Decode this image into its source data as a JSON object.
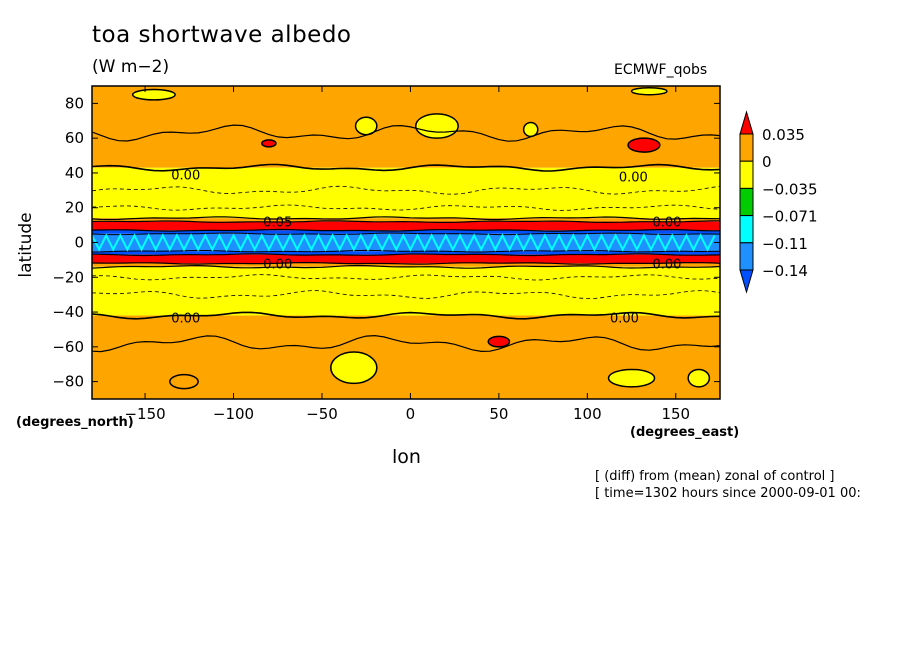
{
  "chart_data": {
    "type": "heatmap",
    "title": "toa shortwave albedo",
    "units": "(W m−2)",
    "model_label": "ECMWF_qobs",
    "xlabel": "lon",
    "ylabel": "latitude",
    "x_units": "(degrees_east)",
    "y_units": "(degrees_north)",
    "xlim": [
      -180,
      175
    ],
    "ylim": [
      -90,
      90
    ],
    "x_ticks": [
      -150,
      -100,
      -50,
      0,
      50,
      100,
      150
    ],
    "y_ticks": [
      -80,
      -60,
      -40,
      -20,
      0,
      20,
      40,
      60,
      80
    ],
    "colorbar": {
      "levels": [
        "0.035",
        "0",
        "−0.035",
        "−0.071",
        "−0.11",
        "−0.14"
      ],
      "colors": [
        "#ff0000",
        "#ffa500",
        "#ffff00",
        "#00cc00",
        "#00ffff",
        "#1e90ff",
        "#0050ff"
      ]
    },
    "bands": [
      {
        "lat_min": 43,
        "lat_max": 90,
        "color": "#ffa500"
      },
      {
        "lat_min": 14,
        "lat_max": 43,
        "color": "#ffff00"
      },
      {
        "lat_min": 12,
        "lat_max": 14,
        "color": "#ffa500"
      },
      {
        "lat_min": 7,
        "lat_max": 12,
        "color": "#ff0000"
      },
      {
        "lat_min": 5,
        "lat_max": 7,
        "color": "#0050ff"
      },
      {
        "lat_min": -5,
        "lat_max": 5,
        "color": "#1e90ff"
      },
      {
        "lat_min": -7,
        "lat_max": -5,
        "color": "#0050ff"
      },
      {
        "lat_min": -12,
        "lat_max": -7,
        "color": "#ff0000"
      },
      {
        "lat_min": -14,
        "lat_max": -12,
        "color": "#ffa500"
      },
      {
        "lat_min": -42,
        "lat_max": -14,
        "color": "#ffff00"
      },
      {
        "lat_min": -90,
        "lat_max": -42,
        "color": "#ffa500"
      }
    ],
    "patches": [
      {
        "lon": -145,
        "lat": 85,
        "rlon": 12,
        "rlat": 3,
        "color": "#ffff00"
      },
      {
        "lon": -25,
        "lat": 67,
        "rlon": 6,
        "rlat": 5,
        "color": "#ffff00"
      },
      {
        "lon": 15,
        "lat": 67,
        "rlon": 12,
        "rlat": 7,
        "color": "#ffff00"
      },
      {
        "lon": 68,
        "lat": 65,
        "rlon": 4,
        "rlat": 4,
        "color": "#ffff00"
      },
      {
        "lon": 132,
        "lat": 56,
        "rlon": 9,
        "rlat": 4,
        "color": "#ff0000"
      },
      {
        "lon": -80,
        "lat": 57,
        "rlon": 4,
        "rlat": 2,
        "color": "#ff0000"
      },
      {
        "lon": 135,
        "lat": 87,
        "rlon": 10,
        "rlat": 2,
        "color": "#ffff00"
      },
      {
        "lon": 50,
        "lat": -57,
        "rlon": 6,
        "rlat": 3,
        "color": "#ff0000"
      },
      {
        "lon": -32,
        "lat": -72,
        "rlon": 13,
        "rlat": 9,
        "color": "#ffff00"
      },
      {
        "lon": 125,
        "lat": -78,
        "rlon": 13,
        "rlat": 5,
        "color": "#ffff00"
      },
      {
        "lon": 163,
        "lat": -78,
        "rlon": 6,
        "rlat": 5,
        "color": "#ffff00"
      },
      {
        "lon": -128,
        "lat": -80,
        "rlon": 8,
        "rlat": 4,
        "color": "#ffa500"
      }
    ],
    "contour_labels": [
      {
        "lon": -127,
        "lat": 39,
        "text": "0.00"
      },
      {
        "lon": 126,
        "lat": 38,
        "text": "0.00"
      },
      {
        "lon": -127,
        "lat": -43,
        "text": "0.00"
      },
      {
        "lon": 121,
        "lat": -43,
        "text": "0.00"
      },
      {
        "lon": 145,
        "lat": 12,
        "text": "0.00"
      },
      {
        "lon": 145,
        "lat": -12,
        "text": "0.00"
      },
      {
        "lon": -75,
        "lat": 12,
        "text": "0.05"
      },
      {
        "lon": -75,
        "lat": -12,
        "text": "0.00"
      }
    ]
  },
  "footer": {
    "line1": "[ (diff) from (mean) zonal of control ]",
    "line2": "[ time=1302 hours since 2000-09-01 00:"
  }
}
